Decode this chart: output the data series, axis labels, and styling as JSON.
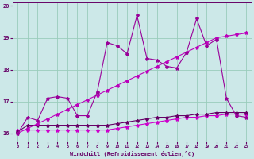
{
  "xlabel": "Windchill (Refroidissement éolien,°C)",
  "background_color": "#cce8e8",
  "grid_color": "#99ccbb",
  "line_color_spiky": "#990099",
  "line_color_diagonal": "#bb00bb",
  "line_color_flat1": "#660066",
  "line_color_flat2": "#cc00cc",
  "xlim": [
    -0.5,
    23.5
  ],
  "ylim": [
    15.75,
    20.1
  ],
  "yticks": [
    16,
    17,
    18,
    19,
    20
  ],
  "xticks": [
    0,
    1,
    2,
    3,
    4,
    5,
    6,
    7,
    8,
    9,
    10,
    11,
    12,
    13,
    14,
    15,
    16,
    17,
    18,
    19,
    20,
    21,
    22,
    23
  ],
  "series_spiky_x": [
    0,
    1,
    2,
    3,
    4,
    5,
    6,
    7,
    8,
    9,
    10,
    11,
    12,
    13,
    14,
    15,
    16,
    17,
    18,
    19,
    20,
    21,
    22,
    23
  ],
  "series_spiky_y": [
    16.0,
    16.5,
    16.4,
    17.1,
    17.15,
    17.1,
    16.55,
    16.55,
    17.3,
    18.85,
    18.75,
    18.5,
    19.7,
    18.35,
    18.3,
    18.1,
    18.05,
    18.55,
    19.6,
    18.75,
    18.95,
    17.1,
    16.55,
    16.5
  ],
  "series_diagonal_x": [
    0,
    1,
    2,
    3,
    4,
    5,
    6,
    7,
    8,
    9,
    10,
    11,
    12,
    13,
    14,
    15,
    16,
    17,
    18,
    19,
    20,
    21,
    22,
    23
  ],
  "series_diagonal_y": [
    16.0,
    16.15,
    16.3,
    16.45,
    16.6,
    16.75,
    16.9,
    17.05,
    17.2,
    17.35,
    17.5,
    17.65,
    17.8,
    17.95,
    18.1,
    18.25,
    18.4,
    18.55,
    18.7,
    18.85,
    19.0,
    19.05,
    19.1,
    19.15
  ],
  "series_flat1_x": [
    0,
    1,
    2,
    3,
    4,
    5,
    6,
    7,
    8,
    9,
    10,
    11,
    12,
    13,
    14,
    15,
    16,
    17,
    18,
    19,
    20,
    21,
    22,
    23
  ],
  "series_flat1_y": [
    16.05,
    16.25,
    16.25,
    16.25,
    16.25,
    16.25,
    16.25,
    16.25,
    16.25,
    16.25,
    16.3,
    16.35,
    16.4,
    16.45,
    16.5,
    16.5,
    16.55,
    16.55,
    16.6,
    16.6,
    16.65,
    16.65,
    16.65,
    16.65
  ],
  "series_flat2_x": [
    0,
    1,
    2,
    3,
    4,
    5,
    6,
    7,
    8,
    9,
    10,
    11,
    12,
    13,
    14,
    15,
    16,
    17,
    18,
    19,
    20,
    21,
    22,
    23
  ],
  "series_flat2_y": [
    16.1,
    16.1,
    16.1,
    16.1,
    16.1,
    16.1,
    16.1,
    16.1,
    16.1,
    16.1,
    16.15,
    16.2,
    16.25,
    16.3,
    16.35,
    16.4,
    16.45,
    16.5,
    16.5,
    16.55,
    16.55,
    16.6,
    16.6,
    16.6
  ],
  "marker": "*",
  "marker_size": 3,
  "linewidth": 0.8
}
